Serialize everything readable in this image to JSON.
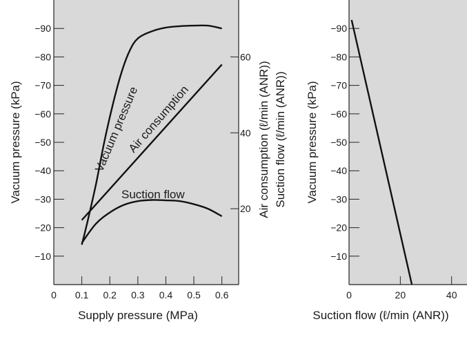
{
  "chart_data": [
    {
      "type": "line",
      "xlabel": "Supply pressure (MPa)",
      "ylabel": "Vacuum pressure (kPa)",
      "y2label_line1": "Air consumption (ℓ/min (ANR))",
      "y2label_line2": "Suction flow (ℓ/min (ANR))",
      "x_ticks": [
        "0",
        "0.1",
        "0.2",
        "0.3",
        "0.4",
        "0.5",
        "0.6"
      ],
      "y_ticks": [
        "-10",
        "-20",
        "-30",
        "-40",
        "-50",
        "-60",
        "-70",
        "-80",
        "-90"
      ],
      "y2_ticks": [
        "20",
        "40",
        "60"
      ],
      "xlim": [
        0,
        0.66
      ],
      "ylim": [
        0,
        -100
      ],
      "y2lim": [
        0,
        75
      ],
      "grid": false,
      "series": [
        {
          "name": "Vacuum pressure",
          "axis": "left",
          "points": [
            [
              0.1,
              -14
            ],
            [
              0.12,
              -22
            ],
            [
              0.15,
              -35
            ],
            [
              0.18,
              -50
            ],
            [
              0.21,
              -63
            ],
            [
              0.24,
              -74
            ],
            [
              0.27,
              -82
            ],
            [
              0.3,
              -86.5
            ],
            [
              0.35,
              -89
            ],
            [
              0.4,
              -90.3
            ],
            [
              0.45,
              -90.8
            ],
            [
              0.5,
              -91
            ],
            [
              0.55,
              -91
            ],
            [
              0.6,
              -90
            ]
          ]
        },
        {
          "name": "Air consumption",
          "axis": "right",
          "points": [
            [
              0.1,
              17
            ],
            [
              0.6,
              58
            ]
          ]
        },
        {
          "name": "Suction flow",
          "axis": "right",
          "points": [
            [
              0.1,
              11
            ],
            [
              0.15,
              16
            ],
            [
              0.2,
              19
            ],
            [
              0.25,
              21
            ],
            [
              0.3,
              22
            ],
            [
              0.35,
              22.3
            ],
            [
              0.4,
              22.2
            ],
            [
              0.45,
              22
            ],
            [
              0.5,
              21.2
            ],
            [
              0.55,
              20
            ],
            [
              0.6,
              18
            ]
          ]
        }
      ]
    },
    {
      "type": "line",
      "xlabel": "Suction flow (ℓ/min (ANR))",
      "ylabel": "Vacuum pressure (kPa)",
      "x_ticks": [
        "0",
        "20",
        "40"
      ],
      "y_ticks": [
        "-10",
        "-20",
        "-30",
        "-40",
        "-50",
        "-60",
        "-70",
        "-80",
        "-90"
      ],
      "xlim": [
        0,
        46
      ],
      "ylim": [
        0,
        -100
      ],
      "grid": false,
      "series": [
        {
          "points": [
            [
              1,
              -93
            ],
            [
              24.5,
              0
            ]
          ]
        }
      ]
    }
  ]
}
